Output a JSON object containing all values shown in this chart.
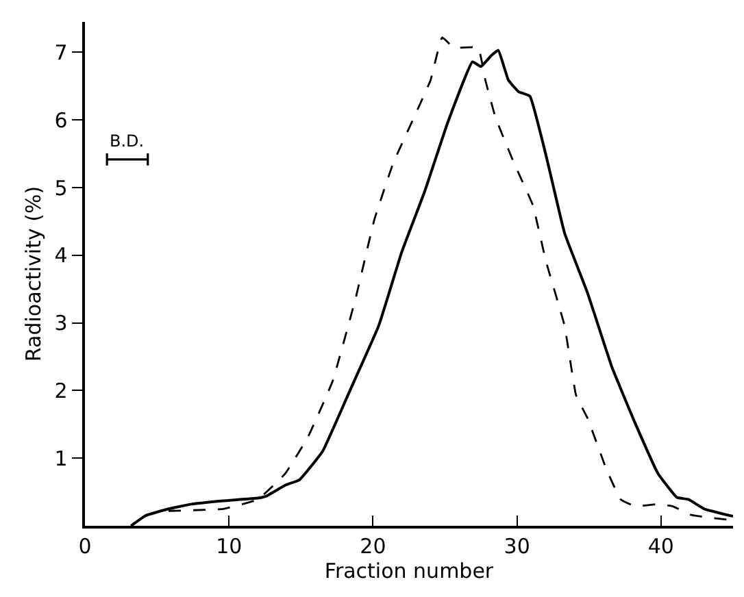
{
  "chart_data": {
    "type": "line",
    "xlabel": "Fraction number",
    "ylabel": "Radioactivity (%)",
    "xlim": [
      0,
      45
    ],
    "xticks": [
      0,
      10,
      20,
      30,
      40
    ],
    "ylim": [
      0,
      7.45
    ],
    "yticks": [
      1,
      2,
      3,
      4,
      5,
      6,
      7
    ],
    "marker": "none",
    "annotations": [
      "B.D."
    ],
    "series": [
      {
        "color": "#000000",
        "line_style": "solid",
        "x": [
          3.2,
          4.2,
          5.8,
          7.4,
          9.6,
          12.0,
          12.6,
          13.9,
          14.9,
          16.5,
          18.4,
          20.4,
          22.0,
          23.6,
          25.2,
          26.9,
          27.5,
          28.2,
          28.7,
          29.4,
          30.1,
          30.9,
          32.0,
          33.3,
          34.9,
          36.6,
          38.2,
          39.8,
          41.1,
          41.9,
          43.0,
          45
        ],
        "values": [
          0,
          0.15,
          0.25,
          0.32,
          0.37,
          0.41,
          0.44,
          0.6,
          0.68,
          1.1,
          2.0,
          2.96,
          4.05,
          4.95,
          5.97,
          6.86,
          6.79,
          6.95,
          7.03,
          6.59,
          6.42,
          6.35,
          5.49,
          4.33,
          3.44,
          2.34,
          1.52,
          0.77,
          0.42,
          0.39,
          0.25,
          0.14
        ]
      },
      {
        "color": "#000000",
        "line_style": "dashed",
        "x": [
          5.8,
          9.6,
          12.0,
          13.9,
          15.5,
          17.2,
          18.8,
          20.1,
          21.4,
          23.0,
          24.0,
          24.8,
          25.6,
          27.3,
          27.8,
          28.5,
          29.8,
          31.1,
          32.0,
          33.3,
          34.1,
          34.9,
          36.2,
          37.2,
          38.2,
          39.8,
          40.8,
          42.1,
          45
        ],
        "values": [
          0.22,
          0.25,
          0.39,
          0.77,
          1.32,
          2.14,
          3.37,
          4.53,
          5.36,
          6.11,
          6.59,
          7.22,
          7.07,
          7.07,
          6.59,
          6.04,
          5.36,
          4.74,
          3.92,
          2.96,
          1.93,
          1.59,
          0.84,
          0.39,
          0.29,
          0.32,
          0.29,
          0.16,
          0.08
        ]
      }
    ]
  }
}
